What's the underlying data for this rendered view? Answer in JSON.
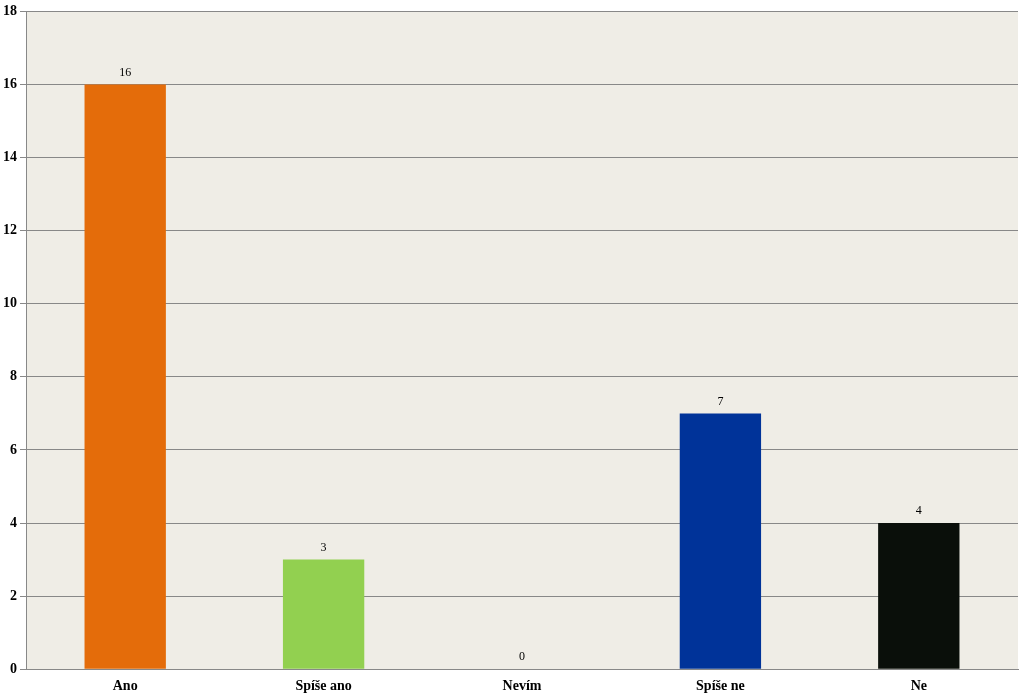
{
  "chart_data": {
    "type": "bar",
    "categories": [
      "Ano",
      "Spíše ano",
      "Nevím",
      "Spíše ne",
      "Ne"
    ],
    "values": [
      16,
      3,
      0,
      7,
      4
    ],
    "colors": [
      "#e46c0a",
      "#92d050",
      "#c0c0c0",
      "#003399",
      "#0a0f0a"
    ],
    "ylim": [
      0,
      18
    ],
    "yticks": [
      0,
      2,
      4,
      6,
      8,
      10,
      12,
      14,
      16,
      18
    ],
    "grid": "y",
    "data_labels": true
  }
}
